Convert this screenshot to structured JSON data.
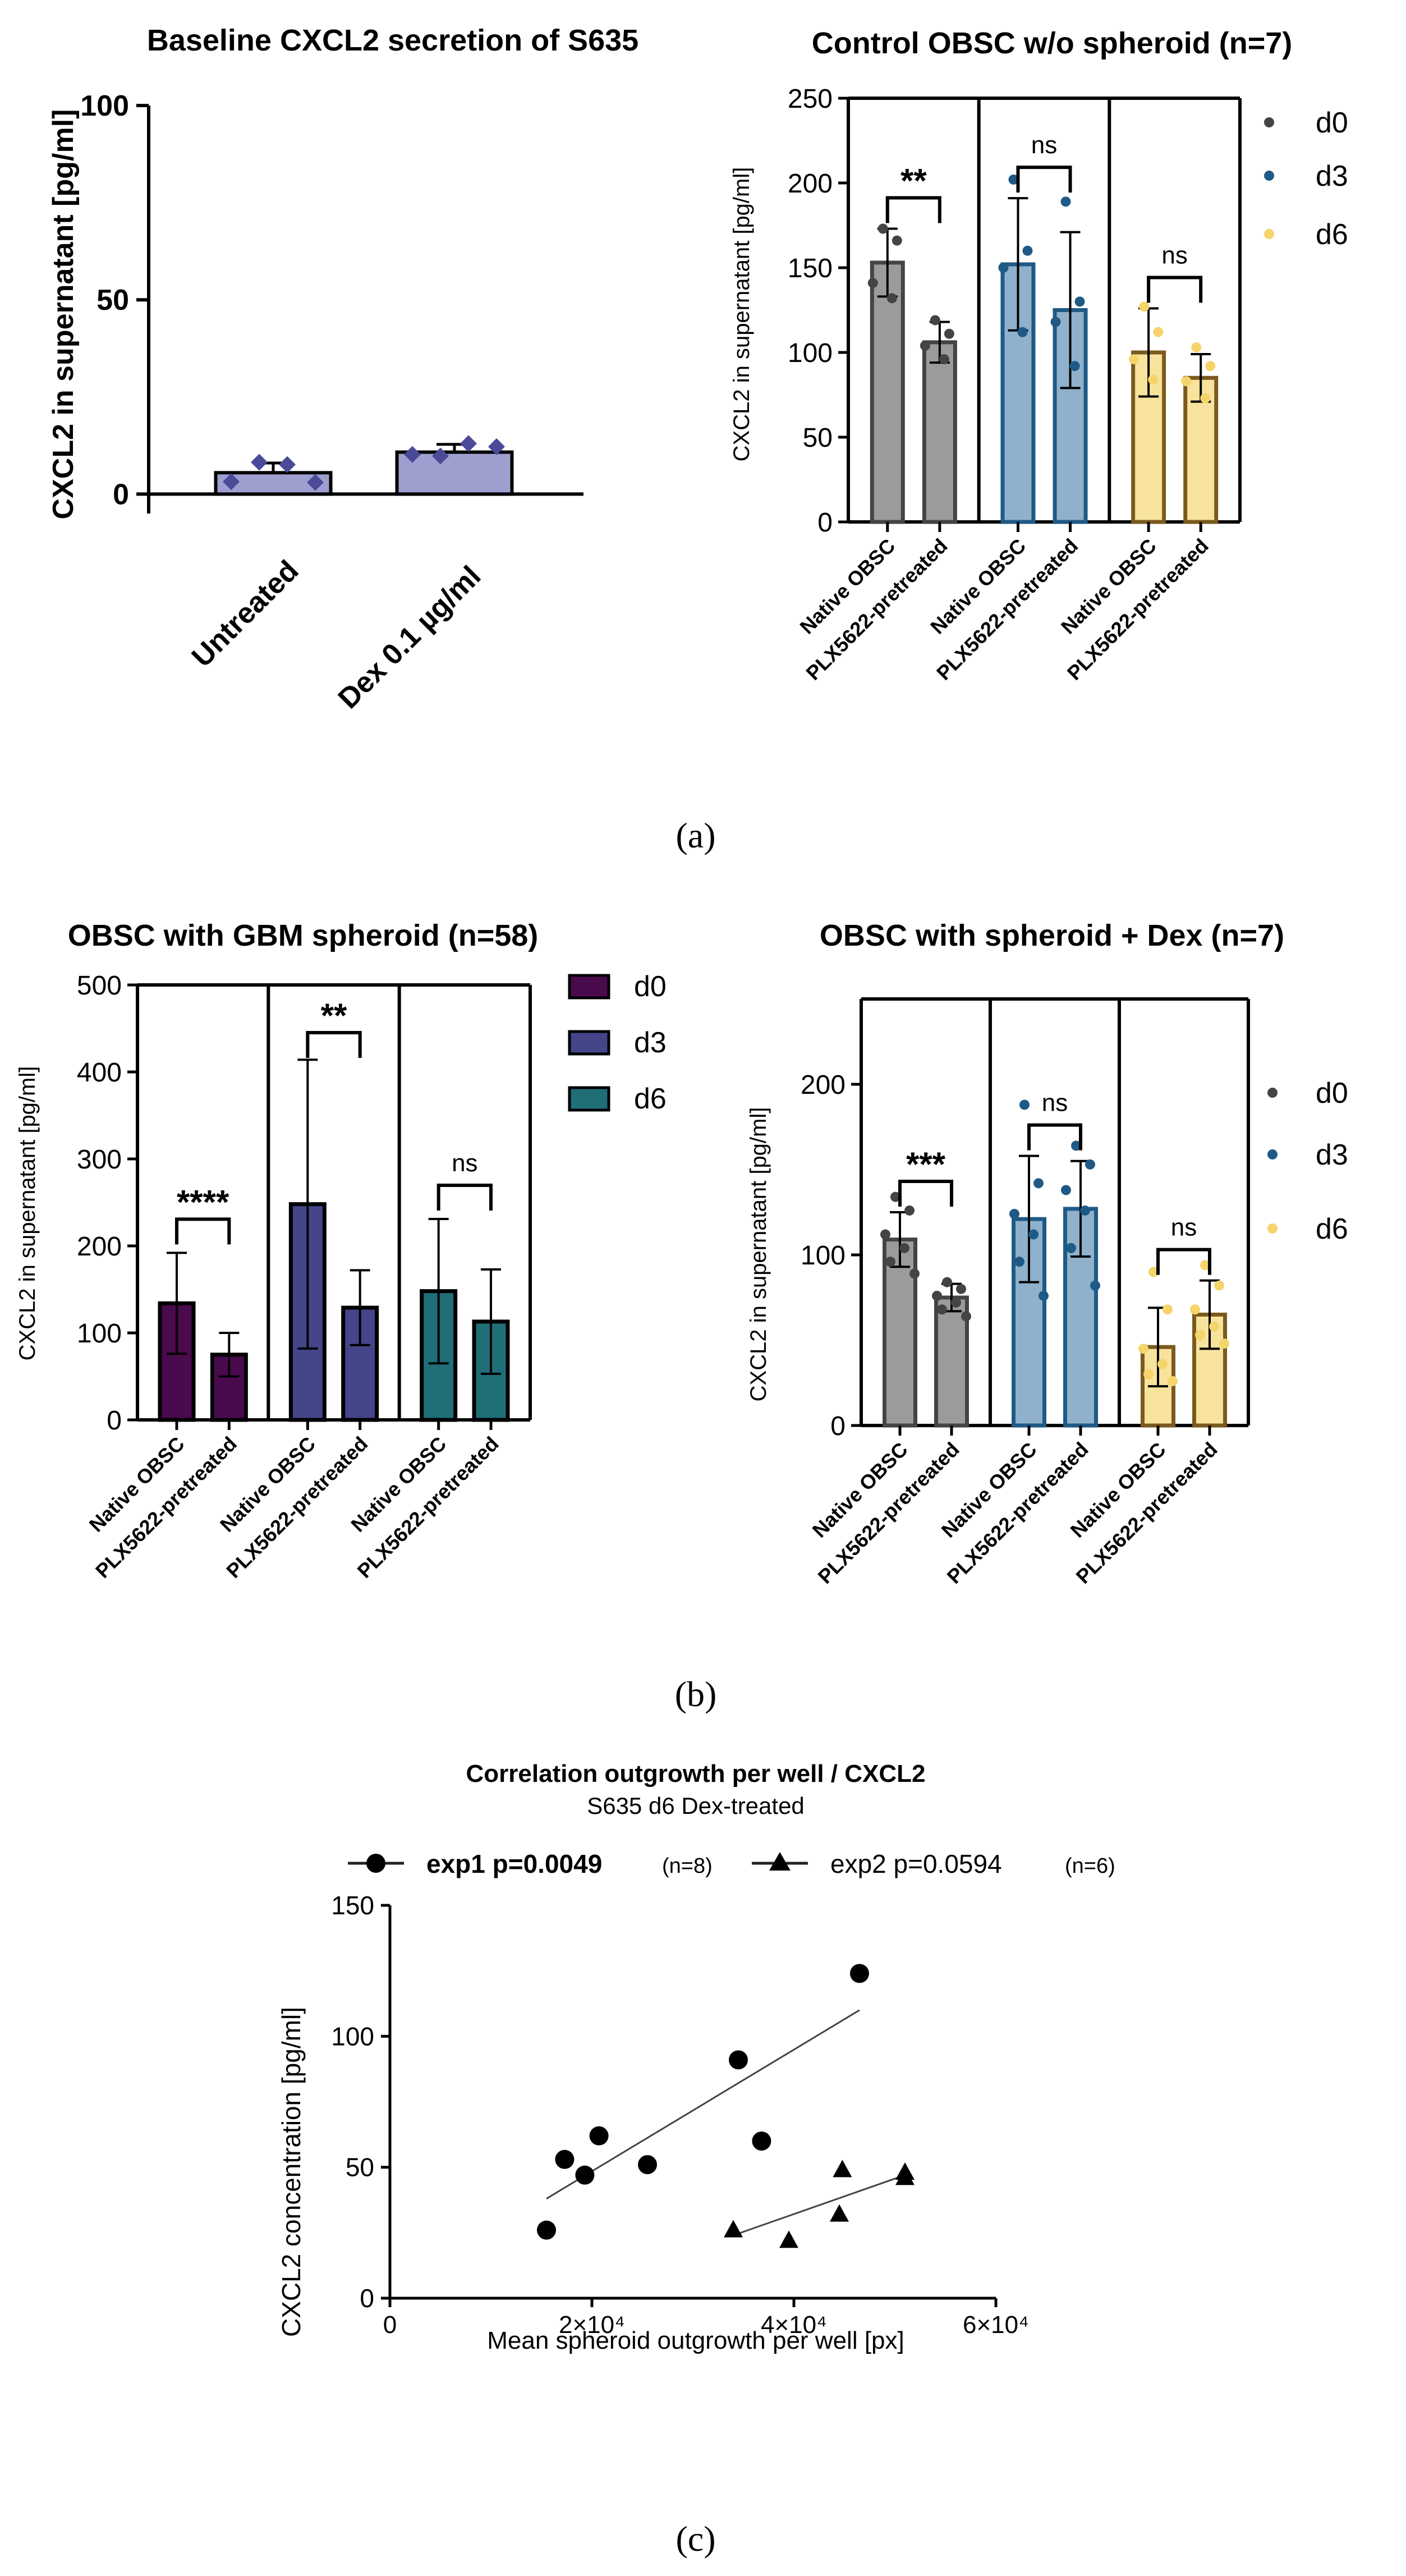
{
  "panel_labels": {
    "a": "(a)",
    "b": "(b)",
    "c": "(c)"
  },
  "colors": {
    "untreated_fill": "#9f9fcf",
    "dex_fill": "#9f9fcf",
    "dex_dots": "#4b4a99",
    "d0_fill": "#9b9b9b",
    "d0_dark": "#444444",
    "d3_fill": "#8fb1cb",
    "d3_dark": "#1f5a86",
    "d6_fill": "#f7e39c",
    "d6_dark": "#7a5a1e",
    "gbm_d0": "#4a0a4e",
    "gbm_d3": "#45458a",
    "gbm_d6": "#1f6e78"
  },
  "chart_data": [
    {
      "id": "a1",
      "type": "bar",
      "title": "Baseline CXCL2 secretion of S635",
      "ylabel": "CXCL2 in supernatant [pg/ml]",
      "ylim": [
        -5,
        100
      ],
      "yticks": [
        0,
        50,
        100
      ],
      "categories": [
        "Untreated",
        "Dex 0.1 µg/ml"
      ],
      "values": [
        5.5,
        10.8
      ],
      "errors": [
        2.5,
        2.0
      ],
      "points": [
        [
          3.2,
          8.2,
          7.6,
          3.0
        ],
        [
          10.2,
          9.8,
          13.0,
          12.2
        ]
      ]
    },
    {
      "id": "a2",
      "type": "bar",
      "title": "Control OBSC w/o spheroid (n=7)",
      "ylabel": "CXCL2 in supernatant [pg/ml]",
      "ylim": [
        0,
        250
      ],
      "yticks": [
        0,
        50,
        100,
        150,
        200,
        250
      ],
      "legend": [
        "d0",
        "d3",
        "d6"
      ],
      "categories": [
        "Native OBSC",
        "PLX5622-pretreated",
        "Native OBSC",
        "PLX5622-pretreated",
        "Native OBSC",
        "PLX5622-pretreated"
      ],
      "groups": [
        {
          "name": "d0",
          "values": [
            153,
            106
          ],
          "errors": [
            20,
            12
          ],
          "points": [
            [
              173,
              166,
              141,
              132
            ],
            [
              119,
              111,
              104,
              96
            ]
          ],
          "significance": "**"
        },
        {
          "name": "d3",
          "values": [
            152,
            125
          ],
          "errors": [
            39,
            46
          ],
          "points": [
            [
              202,
              160,
              150,
              112
            ],
            [
              189,
              130,
              118,
              92
            ]
          ],
          "significance": "ns"
        },
        {
          "name": "d6",
          "values": [
            100,
            85
          ],
          "errors": [
            26,
            14
          ],
          "points": [
            [
              127,
              112,
              96,
              84
            ],
            [
              103,
              92,
              83,
              73
            ]
          ],
          "significance": "ns"
        }
      ]
    },
    {
      "id": "b1",
      "type": "bar",
      "title": "OBSC with GBM spheroid (n=58)",
      "ylabel": "CXCL2 in supernatant [pg/ml]",
      "ylim": [
        0,
        500
      ],
      "yticks": [
        0,
        100,
        200,
        300,
        400,
        500
      ],
      "legend": [
        "d0",
        "d3",
        "d6"
      ],
      "categories": [
        "Native OBSC",
        "PLX5622-pretreated",
        "Native OBSC",
        "PLX5622-pretreated",
        "Native OBSC",
        "PLX5622-pretreated"
      ],
      "groups": [
        {
          "name": "d0",
          "values": [
            134,
            75
          ],
          "errors": [
            58,
            25
          ],
          "significance": "****"
        },
        {
          "name": "d3",
          "values": [
            248,
            129
          ],
          "errors": [
            166,
            43
          ],
          "significance": "**"
        },
        {
          "name": "d6",
          "values": [
            148,
            113
          ],
          "errors": [
            83,
            60
          ],
          "significance": "ns"
        }
      ]
    },
    {
      "id": "b2",
      "type": "bar",
      "title": "OBSC with spheroid + Dex (n=7)",
      "ylabel": "CXCL2 in supernatant [pg/ml]",
      "ylim": [
        0,
        250
      ],
      "yticks": [
        0,
        100,
        200
      ],
      "legend": [
        "d0",
        "d3",
        "d6"
      ],
      "categories": [
        "Native OBSC",
        "PLX5622-pretreated",
        "Native OBSC",
        "PLX5622-pretreated",
        "Native OBSC",
        "PLX5622-pretreated"
      ],
      "groups": [
        {
          "name": "d0",
          "values": [
            109,
            75
          ],
          "errors": [
            16,
            8
          ],
          "points": [
            [
              134,
              126,
              112,
              104,
              96,
              89
            ],
            [
              84,
              80,
              76,
              72,
              68,
              64
            ]
          ],
          "significance": "***"
        },
        {
          "name": "d3",
          "values": [
            121,
            127
          ],
          "errors": [
            37,
            28
          ],
          "points": [
            [
              188,
              142,
              124,
              112,
              96,
              76
            ],
            [
              164,
              153,
              138,
              126,
              104,
              82
            ]
          ],
          "significance": "ns"
        },
        {
          "name": "d6",
          "values": [
            46,
            65
          ],
          "errors": [
            23,
            20
          ],
          "points": [
            [
              90,
              68,
              45,
              36,
              30,
              26
            ],
            [
              94,
              82,
              68,
              58,
              53,
              48
            ]
          ],
          "significance": "ns"
        }
      ]
    },
    {
      "id": "c",
      "type": "scatter",
      "title": "Correlation outgrowth per well / CXCL2",
      "subtitle": "S635 d6 Dex-treated",
      "xlabel": "Mean spheroid outgrowth per well [px]",
      "ylabel": "CXCL2 concentration [pg/ml]",
      "xlim": [
        0,
        60000
      ],
      "ylim": [
        0,
        150
      ],
      "xticks": [
        "0",
        "2×10⁴",
        "4×10⁴",
        "6×10⁴"
      ],
      "yticks": [
        0,
        50,
        100,
        150
      ],
      "series": [
        {
          "name": "exp1 p=0.0049",
          "n": "(n=8)",
          "marker": "circle",
          "x": [
            15500,
            17300,
            19300,
            20700,
            25500,
            34500,
            36800,
            46500
          ],
          "y": [
            26,
            53,
            47,
            62,
            51,
            91,
            60,
            124
          ],
          "fit": [
            [
              15500,
              38
            ],
            [
              46500,
              110
            ]
          ]
        },
        {
          "name": "exp2 p=0.0594",
          "n": "(n=6)",
          "marker": "triangle",
          "x": [
            34000,
            39500,
            44500,
            44800,
            51000,
            51000
          ],
          "y": [
            26,
            22,
            32,
            49,
            46,
            48
          ],
          "fit": [
            [
              34000,
              24
            ],
            [
              51000,
              47
            ]
          ]
        }
      ]
    }
  ]
}
